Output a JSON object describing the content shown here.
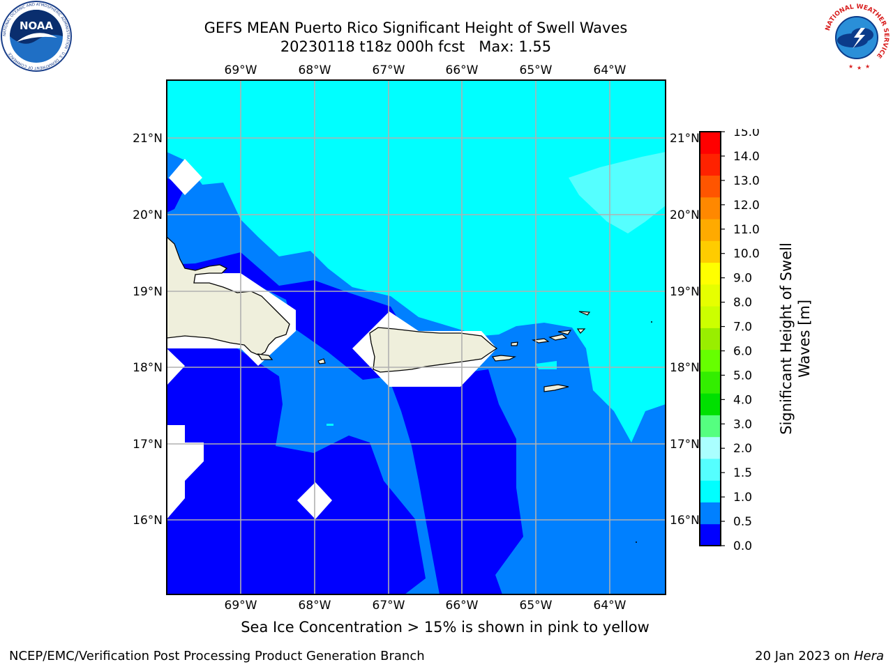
{
  "title": {
    "line1": "GEFS MEAN Puerto Rico Significant Height of Swell Waves",
    "line2": "20230118 t18z 000h fcst   Max: 1.55"
  },
  "map": {
    "lon_labels": [
      "69°W",
      "68°W",
      "67°W",
      "66°W",
      "65°W",
      "64°W"
    ],
    "lat_labels": [
      "21°N",
      "20°N",
      "19°N",
      "18°N",
      "17°N",
      "16°N"
    ],
    "lon_range": [
      -70.0,
      -63.25
    ],
    "lat_range": [
      15.0,
      21.75
    ]
  },
  "colorbar": {
    "label_line1": "Significant Height of Swell",
    "label_line2": "Waves [m]",
    "ticks": [
      "15.0",
      "14.0",
      "13.0",
      "12.0",
      "11.0",
      "10.0",
      "9.0",
      "8.0",
      "7.0",
      "6.0",
      "5.0",
      "4.0",
      "3.0",
      "2.0",
      "1.5",
      "1.0",
      "0.5",
      "0.0"
    ],
    "colors_bottom_to_top": [
      "#0000ff",
      "#0080ff",
      "#00ffff",
      "#55ffff",
      "#aaffff",
      "#55ff80",
      "#00e000",
      "#33ee00",
      "#66ff00",
      "#99ee00",
      "#ccff00",
      "#e6ff00",
      "#ffff00",
      "#ffcc00",
      "#ffaa00",
      "#ff8800",
      "#ff5500",
      "#ff2200",
      "#ff0000"
    ]
  },
  "colors": {
    "band_0_05": "#0000ff",
    "band_05_10": "#0080ff",
    "band_10_15": "#00ffff",
    "band_15_20": "#55ffff",
    "land": "#efefdc",
    "grid": "#b0b0b0"
  },
  "logos": {
    "noaa_text": "NOAA",
    "noaa_ring": "NATIONAL OCEANIC AND ATMOSPHERIC ADMINISTRATION · U.S. DEPARTMENT OF COMMERCE",
    "nws_ring": "NATIONAL WEATHER SERVICE"
  },
  "caption": "Sea Ice Concentration > 15% is shown in pink to yellow",
  "footer": {
    "left": "NCEP/EMC/Verification Post Processing Product Generation Branch",
    "right_prefix": "20 Jan 2023 on ",
    "right_host": "Hera"
  }
}
